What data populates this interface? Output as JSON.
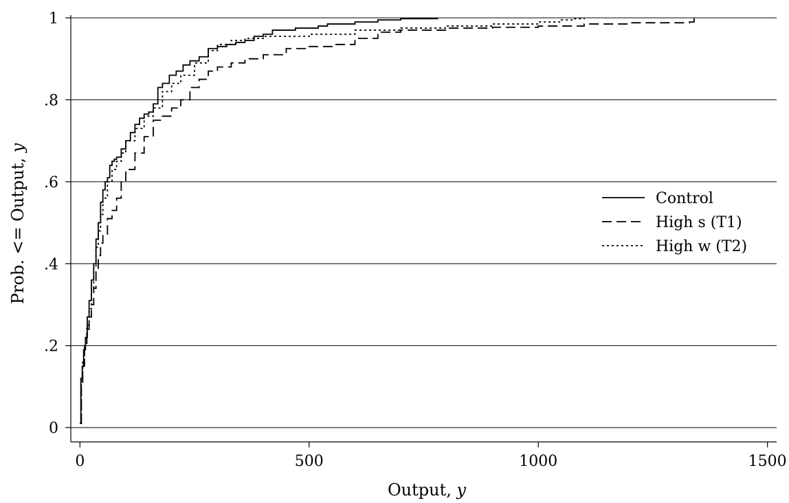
{
  "chart_data": {
    "type": "line",
    "subtype": "empirical CDF (step)",
    "title": "",
    "xlabel": {
      "text": "Output, ",
      "var": "y"
    },
    "ylabel": {
      "text": "Prob. <= Output, ",
      "var": "y"
    },
    "xlim": [
      -20,
      1520
    ],
    "ylim": [
      -0.035,
      1.0
    ],
    "x_ticks": [
      0,
      500,
      1000,
      1500
    ],
    "x_tick_labels": [
      "0",
      "500",
      "1000",
      "1500"
    ],
    "y_ticks": [
      0,
      0.2,
      0.4,
      0.6,
      0.8,
      1
    ],
    "y_tick_labels": [
      "0",
      ".2",
      ".4",
      ".6",
      ".8",
      "1"
    ],
    "grid": "horizontal",
    "legend_position": "right",
    "series": [
      {
        "name": "Control",
        "style": "solid",
        "x": [
          0,
          2,
          5,
          8,
          12,
          16,
          20,
          25,
          30,
          35,
          40,
          45,
          50,
          55,
          60,
          65,
          70,
          75,
          80,
          90,
          100,
          110,
          120,
          130,
          140,
          150,
          160,
          170,
          180,
          195,
          210,
          225,
          240,
          260,
          280,
          300,
          320,
          340,
          360,
          380,
          400,
          420,
          470,
          520,
          540,
          600,
          650,
          700,
          780
        ],
        "y": [
          0.01,
          0.12,
          0.15,
          0.19,
          0.22,
          0.27,
          0.31,
          0.36,
          0.4,
          0.46,
          0.5,
          0.55,
          0.58,
          0.6,
          0.61,
          0.64,
          0.65,
          0.655,
          0.66,
          0.68,
          0.7,
          0.72,
          0.74,
          0.755,
          0.765,
          0.77,
          0.79,
          0.83,
          0.84,
          0.86,
          0.87,
          0.885,
          0.895,
          0.905,
          0.925,
          0.93,
          0.935,
          0.94,
          0.945,
          0.955,
          0.96,
          0.97,
          0.975,
          0.98,
          0.985,
          0.99,
          0.995,
          0.998,
          1.0
        ]
      },
      {
        "name": "High s (T1)",
        "style": "dashed",
        "x": [
          0,
          3,
          6,
          10,
          15,
          20,
          25,
          30,
          35,
          40,
          45,
          50,
          60,
          70,
          80,
          90,
          100,
          120,
          140,
          160,
          180,
          200,
          220,
          240,
          260,
          280,
          300,
          330,
          360,
          400,
          450,
          500,
          550,
          600,
          650,
          700,
          800,
          900,
          1000,
          1100,
          1200,
          1330,
          1340
        ],
        "y": [
          0.01,
          0.1,
          0.15,
          0.2,
          0.24,
          0.27,
          0.3,
          0.34,
          0.38,
          0.42,
          0.45,
          0.47,
          0.51,
          0.53,
          0.56,
          0.6,
          0.63,
          0.67,
          0.71,
          0.75,
          0.76,
          0.78,
          0.8,
          0.83,
          0.85,
          0.87,
          0.88,
          0.89,
          0.9,
          0.91,
          0.925,
          0.93,
          0.935,
          0.95,
          0.965,
          0.97,
          0.975,
          0.977,
          0.98,
          0.985,
          0.988,
          0.99,
          1.0
        ]
      },
      {
        "name": "High w (T2)",
        "style": "dotted",
        "x": [
          0,
          3,
          6,
          10,
          15,
          20,
          25,
          30,
          35,
          40,
          45,
          50,
          60,
          70,
          80,
          90,
          100,
          120,
          140,
          160,
          180,
          200,
          220,
          250,
          280,
          300,
          330,
          360,
          400,
          500,
          600,
          700,
          800,
          900,
          1000,
          1050,
          1080,
          1100
        ],
        "y": [
          0.01,
          0.12,
          0.16,
          0.2,
          0.25,
          0.29,
          0.34,
          0.39,
          0.44,
          0.48,
          0.52,
          0.56,
          0.6,
          0.63,
          0.65,
          0.67,
          0.7,
          0.73,
          0.76,
          0.78,
          0.82,
          0.84,
          0.86,
          0.89,
          0.92,
          0.935,
          0.945,
          0.95,
          0.955,
          0.96,
          0.97,
          0.975,
          0.98,
          0.985,
          0.99,
          0.995,
          0.998,
          1.0
        ]
      }
    ]
  }
}
